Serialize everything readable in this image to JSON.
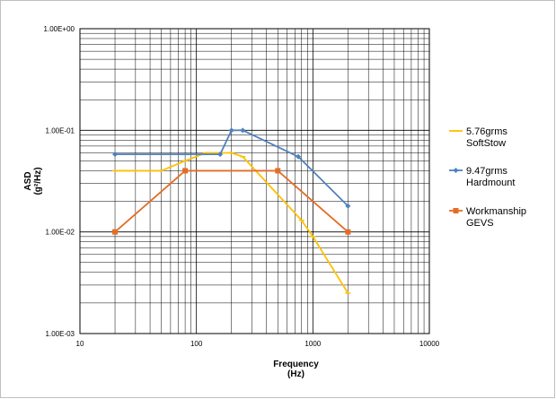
{
  "chart_data": {
    "type": "line",
    "x_scale": "log",
    "y_scale": "log",
    "xlim": [
      10,
      10000
    ],
    "ylim": [
      0.001,
      1
    ],
    "grid": true,
    "legend_position": "right",
    "xlabel": "Frequency",
    "xlabel_unit": "(Hz)",
    "ylabel": "ASD",
    "ylabel_unit": "(g²/Hz)",
    "x_ticks": [
      "10",
      "100",
      "1000",
      "10000"
    ],
    "y_ticks": [
      "1.00E-03",
      "1.00E-02",
      "1.00E-01",
      "1.00E+00"
    ],
    "series": [
      {
        "name_line1": "5.76grms",
        "name_line2": "SoftStow",
        "color": "#ffc000",
        "marker": "dash",
        "x": [
          20,
          50,
          80,
          120,
          200,
          250,
          800,
          1000,
          2000
        ],
        "y": [
          0.04,
          0.04,
          0.05,
          0.06,
          0.06,
          0.055,
          0.013,
          0.009,
          0.0025
        ]
      },
      {
        "name_line1": "9.47grms",
        "name_line2": "Hardmount",
        "color": "#4f81bd",
        "marker": "diamond",
        "x": [
          20,
          160,
          200,
          250,
          750,
          2000
        ],
        "y": [
          0.058,
          0.058,
          0.1,
          0.1,
          0.055,
          0.018
        ]
      },
      {
        "name_line1": "Workmanship",
        "name_line2": "GEVS",
        "color": "#e46c24",
        "marker": "square",
        "x": [
          20,
          80,
          500,
          2000
        ],
        "y": [
          0.01,
          0.04,
          0.04,
          0.01
        ]
      }
    ]
  }
}
